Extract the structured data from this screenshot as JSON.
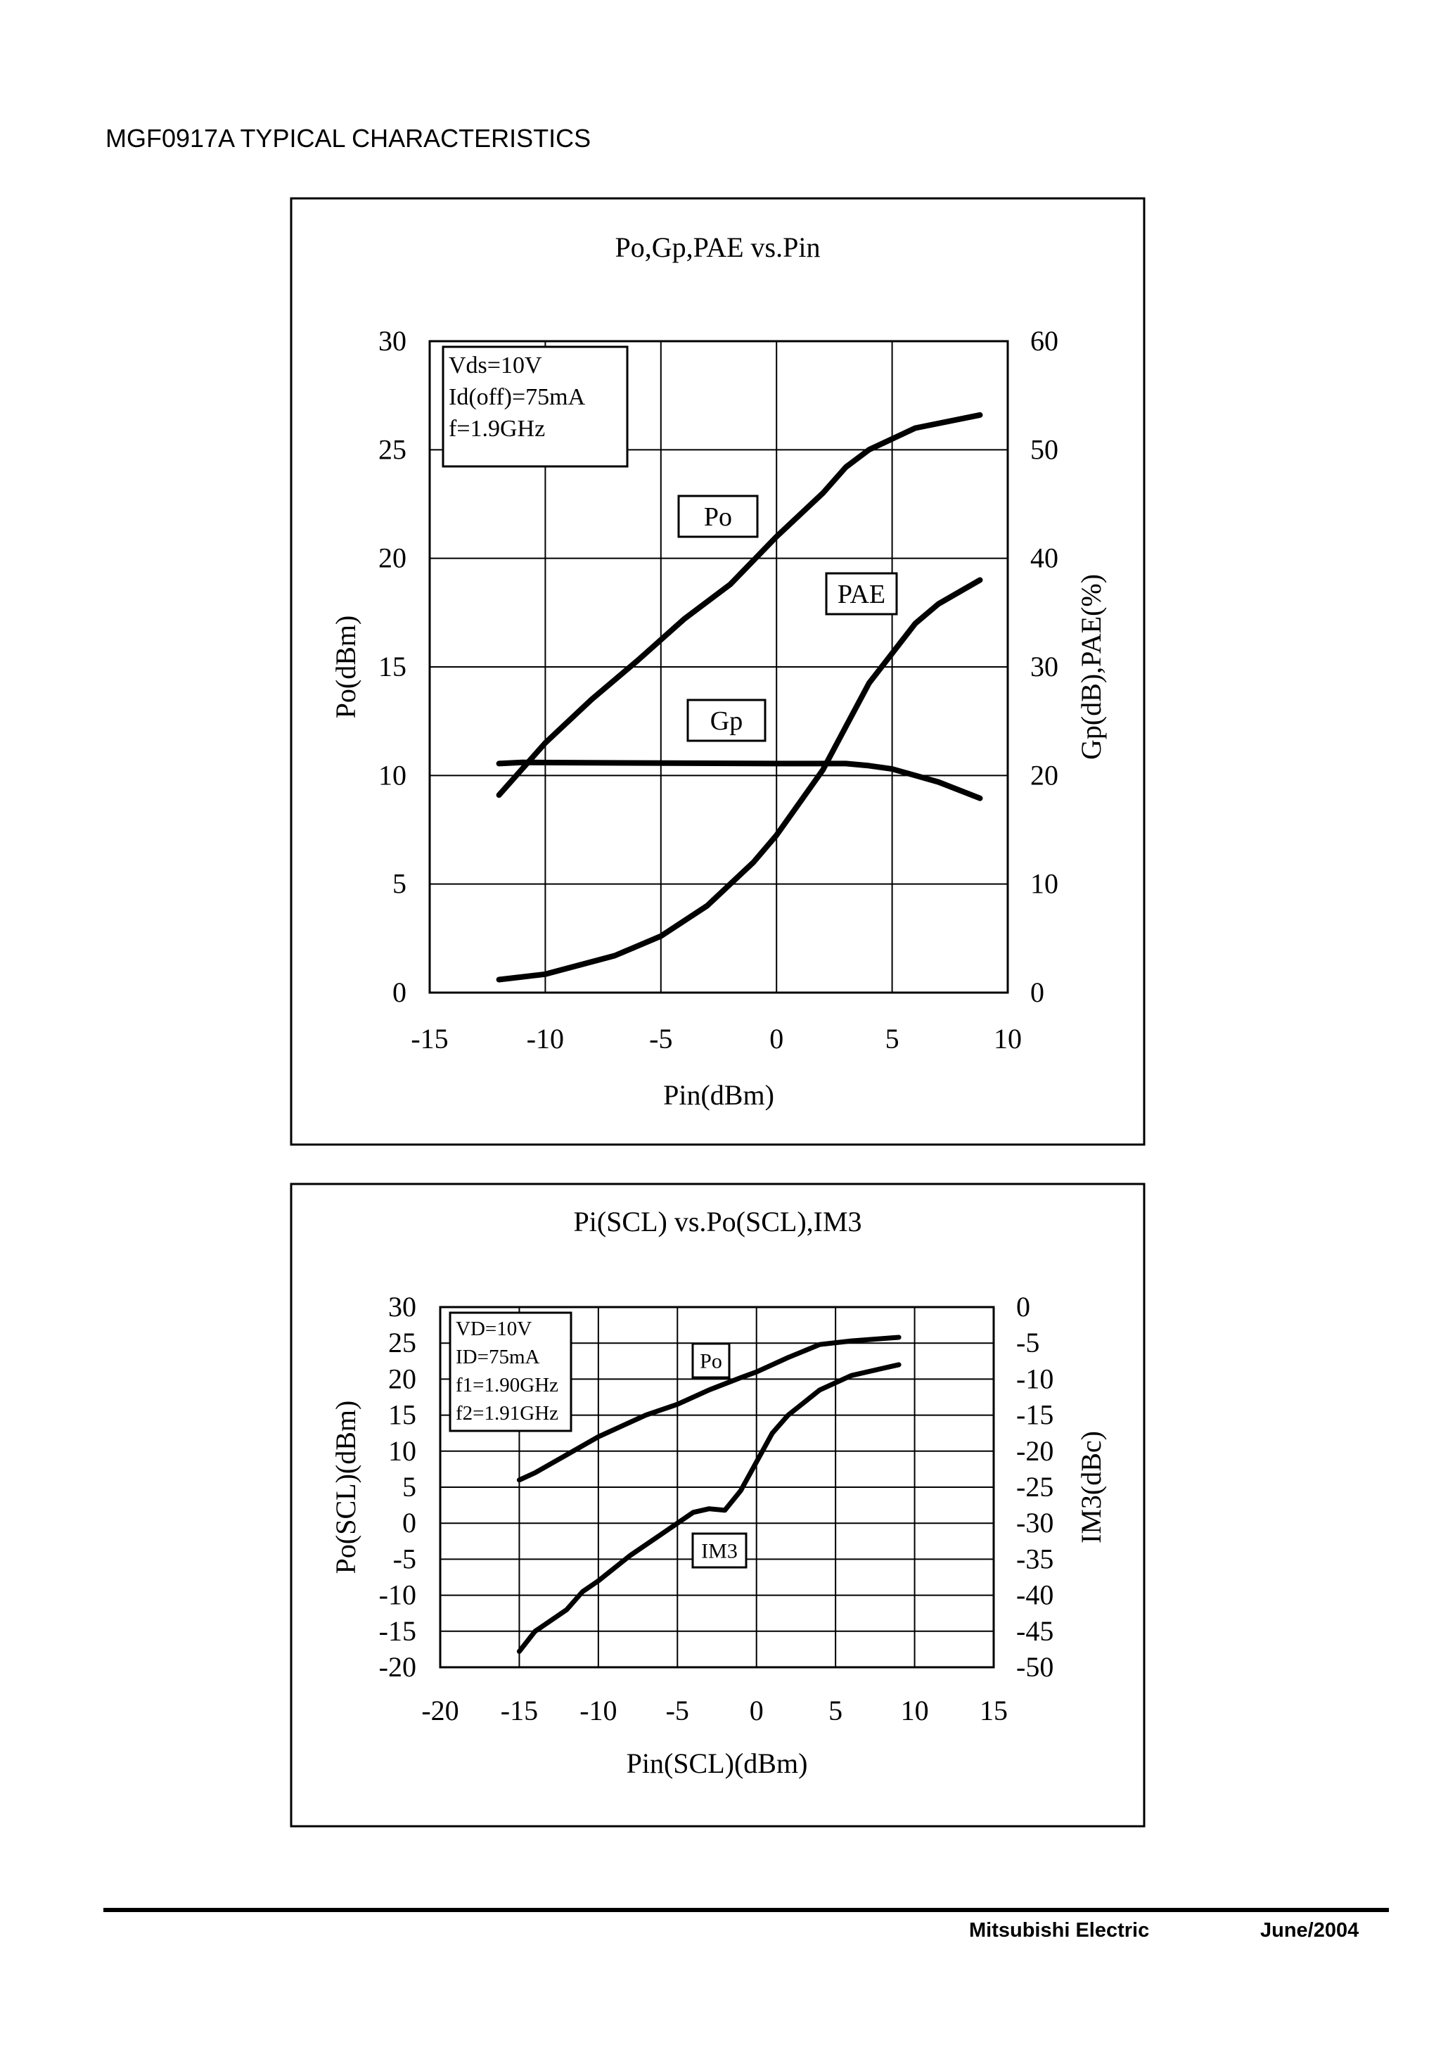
{
  "document": {
    "title": "MGF0917A TYPICAL CHARACTERISTICS",
    "footer_company": "Mitsubishi  Electric",
    "footer_date": "June/2004"
  },
  "chart_data": [
    {
      "type": "line",
      "title": "Po,Gp,PAE vs.Pin",
      "xlabel": "Pin(dBm)",
      "ylabel": "Po(dBm)",
      "y2label": "Gp(dB),PAE(%)",
      "xlim": [
        -15,
        10
      ],
      "ylim": [
        0,
        30
      ],
      "y2lim": [
        0,
        60
      ],
      "xticks": [
        "-15",
        "-10",
        "-5",
        "0",
        "5",
        "10"
      ],
      "yticks": [
        "0",
        "5",
        "10",
        "15",
        "20",
        "25",
        "30"
      ],
      "y2ticks": [
        "0",
        "10",
        "20",
        "30",
        "40",
        "50",
        "60"
      ],
      "grid": true,
      "conditions": [
        "Vds=10V",
        "Id(off)=75mA",
        "f=1.9GHz"
      ],
      "series": [
        {
          "name": "Po",
          "axis": "left",
          "x": [
            -12,
            -10,
            -8,
            -6,
            -4,
            -2,
            0,
            2,
            3,
            4,
            6,
            8.8
          ],
          "y": [
            9.1,
            11.5,
            13.5,
            15.3,
            17.2,
            18.8,
            21,
            23,
            24.2,
            25,
            26,
            26.6
          ]
        },
        {
          "name": "Gp",
          "axis": "right",
          "x": [
            -12,
            -11,
            0,
            3,
            4,
            5,
            6,
            7,
            8.8
          ],
          "y": [
            21.1,
            21.2,
            21.1,
            21.1,
            20.9,
            20.6,
            20,
            19.4,
            17.9
          ]
        },
        {
          "name": "PAE",
          "axis": "right",
          "x": [
            -12,
            -10,
            -7,
            -5,
            -3,
            -2,
            -1,
            0,
            1,
            2,
            3,
            4,
            6,
            7,
            8.8
          ],
          "y": [
            1.2,
            1.7,
            3.4,
            5.2,
            8,
            10,
            12,
            14.5,
            17.5,
            20.5,
            24.5,
            28.5,
            34,
            35.8,
            38
          ]
        }
      ]
    },
    {
      "type": "line",
      "title": "Pi(SCL) vs.Po(SCL),IM3",
      "xlabel": "Pin(SCL)(dBm)",
      "ylabel": "Po(SCL)(dBm)",
      "y2label": "IM3(dBc)",
      "xlim": [
        -20,
        15
      ],
      "ylim": [
        -20,
        30
      ],
      "y2lim": [
        -50,
        0
      ],
      "xticks": [
        "-20",
        "-15",
        "-10",
        "-5",
        "0",
        "5",
        "10",
        "15"
      ],
      "yticks": [
        "-20",
        "-15",
        "-10",
        "-5",
        "0",
        "5",
        "10",
        "15",
        "20",
        "25",
        "30"
      ],
      "y2ticks": [
        "-50",
        "-45",
        "-40",
        "-35",
        "-30",
        "-25",
        "-20",
        "-15",
        "-10",
        "-5",
        "0"
      ],
      "grid": true,
      "conditions": [
        "VD=10V",
        "ID=75mA",
        "f1=1.90GHz",
        "f2=1.91GHz"
      ],
      "series": [
        {
          "name": "Po",
          "axis": "left",
          "x": [
            -15,
            -14,
            -12,
            -10,
            -8,
            -7,
            -5,
            -3,
            -1,
            0,
            2,
            4,
            6,
            9
          ],
          "y": [
            6,
            7,
            9.5,
            12,
            14,
            15,
            16.5,
            18.5,
            20.2,
            21,
            23,
            24.8,
            25.3,
            25.8
          ]
        },
        {
          "name": "IM3",
          "axis": "right",
          "x": [
            -15,
            -14,
            -12,
            -11,
            -10,
            -8,
            -6,
            -5,
            -4,
            -3,
            -2,
            -1,
            0,
            1,
            2,
            4,
            6,
            8,
            9
          ],
          "y": [
            -47.8,
            -45,
            -42,
            -39.5,
            -38,
            -34.5,
            -31.5,
            -30,
            -28.5,
            -28,
            -28.2,
            -25.5,
            -21.5,
            -17.5,
            -15,
            -11.5,
            -9.5,
            -8.5,
            -8
          ]
        }
      ]
    }
  ]
}
